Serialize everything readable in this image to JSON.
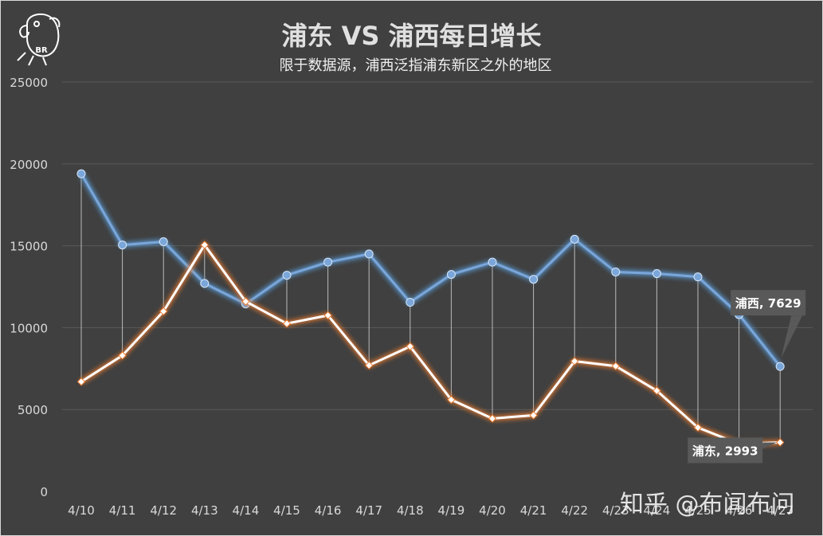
{
  "watermark": "知乎 @布闻布问",
  "logo_text": "BR",
  "colors": {
    "background": "#404040",
    "pudong": "#7aa6da",
    "puxi": "#ffffff",
    "puxi_glow": "#ed7d31",
    "pudong_glow": "#5b9bd5",
    "gridline": "#595959",
    "text": "#e0e0e0"
  },
  "chart_data": {
    "type": "line",
    "title": "浦东 VS 浦西每日增长",
    "subtitle": "限于数据源，浦西泛指浦东新区之外的地区",
    "xlabel": "",
    "ylabel": "",
    "ylim": [
      0,
      25000
    ],
    "yticks": [
      "25000",
      "20000",
      "15000",
      "10000",
      "5000",
      "0"
    ],
    "grid": true,
    "categories": [
      "4/10",
      "4/11",
      "4/12",
      "4/13",
      "4/14",
      "4/15",
      "4/16",
      "4/17",
      "4/18",
      "4/19",
      "4/20",
      "4/21",
      "4/22",
      "4/23",
      "4/24",
      "4/25",
      "4/26",
      "4/27"
    ],
    "series": [
      {
        "key": "pudong",
        "values": [
          19400,
          15050,
          15250,
          12700,
          11450,
          13200,
          14000,
          14500,
          11550,
          13250,
          14000,
          12950,
          15400,
          13400,
          13300,
          13100,
          10800,
          7629
        ]
      },
      {
        "key": "puxi",
        "values": [
          6700,
          8300,
          11000,
          15050,
          11600,
          10250,
          10750,
          7700,
          8850,
          5600,
          4450,
          4650,
          7950,
          7650,
          6150,
          3900,
          2900,
          2993
        ]
      }
    ],
    "annotations": [
      {
        "series": "pudong",
        "index": 17,
        "text": "浦西, 7629"
      },
      {
        "series": "puxi",
        "index": 17,
        "text": "浦东, 2993"
      }
    ]
  }
}
